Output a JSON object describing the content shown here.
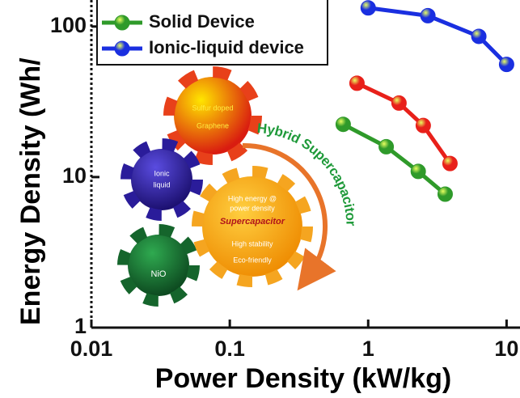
{
  "chart_data": {
    "type": "line",
    "xlabel": "Power Density (kW/kg)",
    "ylabel": "Energy Density (Wh/",
    "xscale": "log",
    "yscale": "log",
    "xlim": [
      0.01,
      12.5
    ],
    "ylim": [
      1,
      150
    ],
    "xticks": [
      0.01,
      0.1,
      1,
      10
    ],
    "yticks": [
      1,
      10,
      100
    ],
    "legend": "upper left",
    "series": [
      {
        "name": "Solid Device",
        "color": "#2f9a2a",
        "x": [
          0.66,
          1.35,
          2.3,
          3.6
        ],
        "values": [
          22.4,
          15.9,
          10.9,
          7.7
        ]
      },
      {
        "color": "#e8201a",
        "x": [
          0.83,
          1.67,
          2.5,
          3.9
        ],
        "values": [
          42,
          31,
          22,
          12.3
        ]
      },
      {
        "name": "Ionic-liquid device",
        "color": "#1a2fe0",
        "x": [
          1,
          2.7,
          6.3,
          10
        ],
        "values": [
          133,
          118,
          86,
          56
        ]
      }
    ],
    "annotations": [
      "Sulfur doped",
      "Graphene",
      "Ionic",
      "liquid",
      "NiO",
      "High energy @",
      "power density",
      "Supercapacitor",
      "High stability",
      "Eco-friendly",
      "Hybrid Supercapacitor"
    ]
  }
}
